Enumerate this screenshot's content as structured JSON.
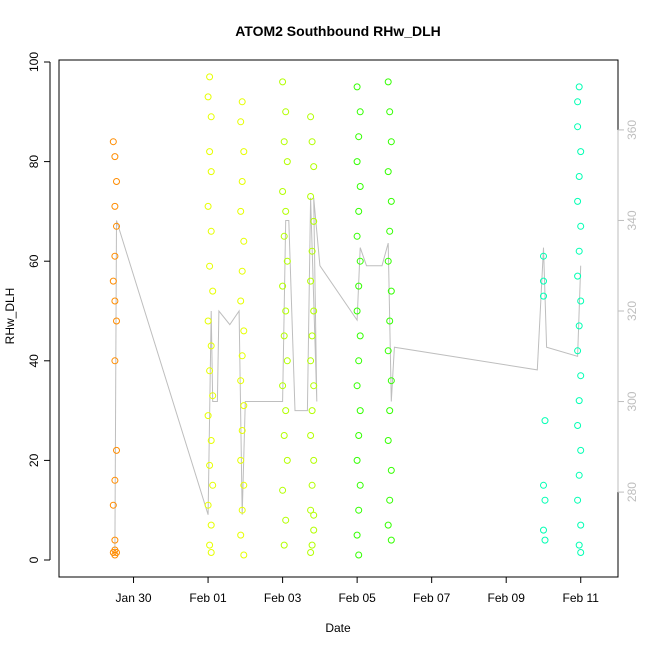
{
  "chart_data": {
    "type": "scatter",
    "title": "ATOM2 Southbound RHw_DLH",
    "xlabel": "Date",
    "ylabel": "RHw_DLH",
    "ylim": [
      0,
      100
    ],
    "y_ticks": [
      0,
      20,
      40,
      60,
      80,
      100
    ],
    "x_axis": {
      "type": "date",
      "range": [
        "2017-01-28T00:00",
        "2017-02-12T00:00"
      ],
      "ticks": [
        {
          "value": "2017-01-30",
          "label": "Jan 30"
        },
        {
          "value": "2017-02-01",
          "label": "Feb 01"
        },
        {
          "value": "2017-02-03",
          "label": "Feb 03"
        },
        {
          "value": "2017-02-05",
          "label": "Feb 05"
        },
        {
          "value": "2017-02-07",
          "label": "Feb 07"
        },
        {
          "value": "2017-02-09",
          "label": "Feb 09"
        },
        {
          "value": "2017-02-11",
          "label": "Feb 11"
        }
      ]
    },
    "secondary_axis": {
      "side": "right",
      "range": [
        265,
        375
      ],
      "ticks": [
        280,
        300,
        320,
        340,
        360
      ],
      "color": "#bebebe",
      "line_color": "#bebebe",
      "line_points": [
        {
          "x": "2017-01-29T12:00",
          "y": 267
        },
        {
          "x": "2017-01-29T13:00",
          "y": 340
        },
        {
          "x": "2017-02-01T00:00",
          "y": 275
        },
        {
          "x": "2017-02-01T02:00",
          "y": 320
        },
        {
          "x": "2017-02-01T03:00",
          "y": 300
        },
        {
          "x": "2017-02-01T06:00",
          "y": 300
        },
        {
          "x": "2017-02-01T07:00",
          "y": 320
        },
        {
          "x": "2017-02-01T14:00",
          "y": 317
        },
        {
          "x": "2017-02-01T20:00",
          "y": 320
        },
        {
          "x": "2017-02-01T22:00",
          "y": 275
        },
        {
          "x": "2017-02-02T00:00",
          "y": 300
        },
        {
          "x": "2017-02-03T00:00",
          "y": 300
        },
        {
          "x": "2017-02-03T02:00",
          "y": 340
        },
        {
          "x": "2017-02-03T04:00",
          "y": 340
        },
        {
          "x": "2017-02-03T08:00",
          "y": 298
        },
        {
          "x": "2017-02-03T16:00",
          "y": 298
        },
        {
          "x": "2017-02-03T18:00",
          "y": 345
        },
        {
          "x": "2017-02-03T22:00",
          "y": 300
        },
        {
          "x": "2017-02-03T20:00",
          "y": 345
        },
        {
          "x": "2017-02-04T00:00",
          "y": 330
        },
        {
          "x": "2017-02-05T00:00",
          "y": 318
        },
        {
          "x": "2017-02-05T02:00",
          "y": 334
        },
        {
          "x": "2017-02-05T06:00",
          "y": 330
        },
        {
          "x": "2017-02-05T16:00",
          "y": 330
        },
        {
          "x": "2017-02-05T20:00",
          "y": 335
        },
        {
          "x": "2017-02-05T22:00",
          "y": 300
        },
        {
          "x": "2017-02-06T00:00",
          "y": 312
        },
        {
          "x": "2017-02-09T20:00",
          "y": 307
        },
        {
          "x": "2017-02-10T00:00",
          "y": 334
        },
        {
          "x": "2017-02-10T02:00",
          "y": 312
        },
        {
          "x": "2017-02-10T22:00",
          "y": 310
        },
        {
          "x": "2017-02-11T00:00",
          "y": 330
        }
      ]
    },
    "series": [
      {
        "color": "#ff8c00",
        "points": [
          {
            "x": "2017-01-29T11:00",
            "y": 84
          },
          {
            "x": "2017-01-29T12:00",
            "y": 81
          },
          {
            "x": "2017-01-29T13:00",
            "y": 76
          },
          {
            "x": "2017-01-29T12:00",
            "y": 71
          },
          {
            "x": "2017-01-29T13:00",
            "y": 67
          },
          {
            "x": "2017-01-29T12:00",
            "y": 61
          },
          {
            "x": "2017-01-29T11:00",
            "y": 56
          },
          {
            "x": "2017-01-29T12:00",
            "y": 52
          },
          {
            "x": "2017-01-29T13:00",
            "y": 48
          },
          {
            "x": "2017-01-29T12:00",
            "y": 40
          },
          {
            "x": "2017-01-29T13:00",
            "y": 22
          },
          {
            "x": "2017-01-29T12:00",
            "y": 16
          },
          {
            "x": "2017-01-29T11:00",
            "y": 11
          },
          {
            "x": "2017-01-29T12:00",
            "y": 4
          },
          {
            "x": "2017-01-29T12:00",
            "y": 2
          },
          {
            "x": "2017-01-29T13:00",
            "y": 1.5
          },
          {
            "x": "2017-01-29T11:00",
            "y": 1.5
          },
          {
            "x": "2017-01-29T12:00",
            "y": 1
          }
        ]
      },
      {
        "color": "#e6ff00",
        "points": [
          {
            "x": "2017-02-01T00:00",
            "y": 93
          },
          {
            "x": "2017-02-01T01:00",
            "y": 97
          },
          {
            "x": "2017-02-01T02:00",
            "y": 89
          },
          {
            "x": "2017-02-01T01:00",
            "y": 82
          },
          {
            "x": "2017-02-01T02:00",
            "y": 78
          },
          {
            "x": "2017-02-01T00:00",
            "y": 71
          },
          {
            "x": "2017-02-01T02:00",
            "y": 66
          },
          {
            "x": "2017-02-01T01:00",
            "y": 59
          },
          {
            "x": "2017-02-01T03:00",
            "y": 54
          },
          {
            "x": "2017-02-01T00:00",
            "y": 48
          },
          {
            "x": "2017-02-01T02:00",
            "y": 43
          },
          {
            "x": "2017-02-01T01:00",
            "y": 38
          },
          {
            "x": "2017-02-01T03:00",
            "y": 33
          },
          {
            "x": "2017-02-01T00:00",
            "y": 29
          },
          {
            "x": "2017-02-01T02:00",
            "y": 24
          },
          {
            "x": "2017-02-01T01:00",
            "y": 19
          },
          {
            "x": "2017-02-01T03:00",
            "y": 15
          },
          {
            "x": "2017-02-01T00:00",
            "y": 11
          },
          {
            "x": "2017-02-01T02:00",
            "y": 7
          },
          {
            "x": "2017-02-01T01:00",
            "y": 3
          },
          {
            "x": "2017-02-01T02:00",
            "y": 1.5
          },
          {
            "x": "2017-02-01T21:00",
            "y": 88
          },
          {
            "x": "2017-02-01T22:00",
            "y": 92
          },
          {
            "x": "2017-02-01T23:00",
            "y": 82
          },
          {
            "x": "2017-02-01T22:00",
            "y": 76
          },
          {
            "x": "2017-02-01T21:00",
            "y": 70
          },
          {
            "x": "2017-02-01T23:00",
            "y": 64
          },
          {
            "x": "2017-02-01T22:00",
            "y": 58
          },
          {
            "x": "2017-02-01T21:00",
            "y": 52
          },
          {
            "x": "2017-02-01T23:00",
            "y": 46
          },
          {
            "x": "2017-02-01T22:00",
            "y": 41
          },
          {
            "x": "2017-02-01T21:00",
            "y": 36
          },
          {
            "x": "2017-02-01T23:00",
            "y": 31
          },
          {
            "x": "2017-02-01T22:00",
            "y": 26
          },
          {
            "x": "2017-02-01T21:00",
            "y": 20
          },
          {
            "x": "2017-02-01T23:00",
            "y": 15
          },
          {
            "x": "2017-02-01T22:00",
            "y": 10
          },
          {
            "x": "2017-02-01T21:00",
            "y": 5
          },
          {
            "x": "2017-02-01T23:00",
            "y": 1
          }
        ]
      },
      {
        "color": "#b3ff00",
        "points": [
          {
            "x": "2017-02-03T00:00",
            "y": 96
          },
          {
            "x": "2017-02-03T02:00",
            "y": 90
          },
          {
            "x": "2017-02-03T01:00",
            "y": 84
          },
          {
            "x": "2017-02-03T03:00",
            "y": 80
          },
          {
            "x": "2017-02-03T00:00",
            "y": 74
          },
          {
            "x": "2017-02-03T02:00",
            "y": 70
          },
          {
            "x": "2017-02-03T01:00",
            "y": 65
          },
          {
            "x": "2017-02-03T03:00",
            "y": 60
          },
          {
            "x": "2017-02-03T00:00",
            "y": 55
          },
          {
            "x": "2017-02-03T02:00",
            "y": 50
          },
          {
            "x": "2017-02-03T01:00",
            "y": 45
          },
          {
            "x": "2017-02-03T03:00",
            "y": 40
          },
          {
            "x": "2017-02-03T00:00",
            "y": 35
          },
          {
            "x": "2017-02-03T02:00",
            "y": 30
          },
          {
            "x": "2017-02-03T01:00",
            "y": 25
          },
          {
            "x": "2017-02-03T03:00",
            "y": 20
          },
          {
            "x": "2017-02-03T00:00",
            "y": 14
          },
          {
            "x": "2017-02-03T02:00",
            "y": 8
          },
          {
            "x": "2017-02-03T01:00",
            "y": 3
          },
          {
            "x": "2017-02-03T18:00",
            "y": 89
          },
          {
            "x": "2017-02-03T19:00",
            "y": 84
          },
          {
            "x": "2017-02-03T20:00",
            "y": 79
          },
          {
            "x": "2017-02-03T18:00",
            "y": 73
          },
          {
            "x": "2017-02-03T20:00",
            "y": 68
          },
          {
            "x": "2017-02-03T19:00",
            "y": 62
          },
          {
            "x": "2017-02-03T18:00",
            "y": 56
          },
          {
            "x": "2017-02-03T20:00",
            "y": 50
          },
          {
            "x": "2017-02-03T19:00",
            "y": 45
          },
          {
            "x": "2017-02-03T18:00",
            "y": 40
          },
          {
            "x": "2017-02-03T20:00",
            "y": 35
          },
          {
            "x": "2017-02-03T19:00",
            "y": 30
          },
          {
            "x": "2017-02-03T18:00",
            "y": 25
          },
          {
            "x": "2017-02-03T20:00",
            "y": 20
          },
          {
            "x": "2017-02-03T19:00",
            "y": 15
          },
          {
            "x": "2017-02-03T18:00",
            "y": 10
          },
          {
            "x": "2017-02-03T20:00",
            "y": 6
          },
          {
            "x": "2017-02-03T19:00",
            "y": 3
          },
          {
            "x": "2017-02-03T18:00",
            "y": 1.5
          },
          {
            "x": "2017-02-03T20:00",
            "y": 9
          }
        ]
      },
      {
        "color": "#33ff00",
        "points": [
          {
            "x": "2017-02-05T00:00",
            "y": 95
          },
          {
            "x": "2017-02-05T02:00",
            "y": 90
          },
          {
            "x": "2017-02-05T01:00",
            "y": 85
          },
          {
            "x": "2017-02-05T00:00",
            "y": 80
          },
          {
            "x": "2017-02-05T02:00",
            "y": 75
          },
          {
            "x": "2017-02-05T01:00",
            "y": 70
          },
          {
            "x": "2017-02-05T00:00",
            "y": 65
          },
          {
            "x": "2017-02-05T02:00",
            "y": 60
          },
          {
            "x": "2017-02-05T01:00",
            "y": 55
          },
          {
            "x": "2017-02-05T00:00",
            "y": 50
          },
          {
            "x": "2017-02-05T02:00",
            "y": 45
          },
          {
            "x": "2017-02-05T01:00",
            "y": 40
          },
          {
            "x": "2017-02-05T00:00",
            "y": 35
          },
          {
            "x": "2017-02-05T02:00",
            "y": 30
          },
          {
            "x": "2017-02-05T01:00",
            "y": 25
          },
          {
            "x": "2017-02-05T00:00",
            "y": 20
          },
          {
            "x": "2017-02-05T02:00",
            "y": 15
          },
          {
            "x": "2017-02-05T01:00",
            "y": 10
          },
          {
            "x": "2017-02-05T00:00",
            "y": 5
          },
          {
            "x": "2017-02-05T01:00",
            "y": 1
          },
          {
            "x": "2017-02-05T20:00",
            "y": 96
          },
          {
            "x": "2017-02-05T21:00",
            "y": 90
          },
          {
            "x": "2017-02-05T22:00",
            "y": 84
          },
          {
            "x": "2017-02-05T20:00",
            "y": 78
          },
          {
            "x": "2017-02-05T22:00",
            "y": 72
          },
          {
            "x": "2017-02-05T21:00",
            "y": 66
          },
          {
            "x": "2017-02-05T20:00",
            "y": 60
          },
          {
            "x": "2017-02-05T22:00",
            "y": 54
          },
          {
            "x": "2017-02-05T21:00",
            "y": 48
          },
          {
            "x": "2017-02-05T20:00",
            "y": 42
          },
          {
            "x": "2017-02-05T22:00",
            "y": 36
          },
          {
            "x": "2017-02-05T21:00",
            "y": 30
          },
          {
            "x": "2017-02-05T20:00",
            "y": 24
          },
          {
            "x": "2017-02-05T22:00",
            "y": 18
          },
          {
            "x": "2017-02-05T21:00",
            "y": 12
          },
          {
            "x": "2017-02-05T20:00",
            "y": 7
          },
          {
            "x": "2017-02-05T22:00",
            "y": 4
          }
        ]
      },
      {
        "color": "#00ffb3",
        "points": [
          {
            "x": "2017-02-10T00:00",
            "y": 61
          },
          {
            "x": "2017-02-10T00:00",
            "y": 56
          },
          {
            "x": "2017-02-10T00:00",
            "y": 53
          },
          {
            "x": "2017-02-10T01:00",
            "y": 28
          },
          {
            "x": "2017-02-10T00:00",
            "y": 15
          },
          {
            "x": "2017-02-10T01:00",
            "y": 12
          },
          {
            "x": "2017-02-10T00:00",
            "y": 6
          },
          {
            "x": "2017-02-10T01:00",
            "y": 4
          },
          {
            "x": "2017-02-10T22:00",
            "y": 92
          },
          {
            "x": "2017-02-10T23:00",
            "y": 95
          },
          {
            "x": "2017-02-10T22:00",
            "y": 87
          },
          {
            "x": "2017-02-11T00:00",
            "y": 82
          },
          {
            "x": "2017-02-10T23:00",
            "y": 77
          },
          {
            "x": "2017-02-10T22:00",
            "y": 72
          },
          {
            "x": "2017-02-11T00:00",
            "y": 67
          },
          {
            "x": "2017-02-10T23:00",
            "y": 62
          },
          {
            "x": "2017-02-10T22:00",
            "y": 57
          },
          {
            "x": "2017-02-11T00:00",
            "y": 52
          },
          {
            "x": "2017-02-10T23:00",
            "y": 47
          },
          {
            "x": "2017-02-10T22:00",
            "y": 42
          },
          {
            "x": "2017-02-11T00:00",
            "y": 37
          },
          {
            "x": "2017-02-10T23:00",
            "y": 32
          },
          {
            "x": "2017-02-10T22:00",
            "y": 27
          },
          {
            "x": "2017-02-11T00:00",
            "y": 22
          },
          {
            "x": "2017-02-10T23:00",
            "y": 17
          },
          {
            "x": "2017-02-10T22:00",
            "y": 12
          },
          {
            "x": "2017-02-11T00:00",
            "y": 7
          },
          {
            "x": "2017-02-10T23:00",
            "y": 3
          },
          {
            "x": "2017-02-11T00:00",
            "y": 1.5
          }
        ]
      }
    ]
  }
}
